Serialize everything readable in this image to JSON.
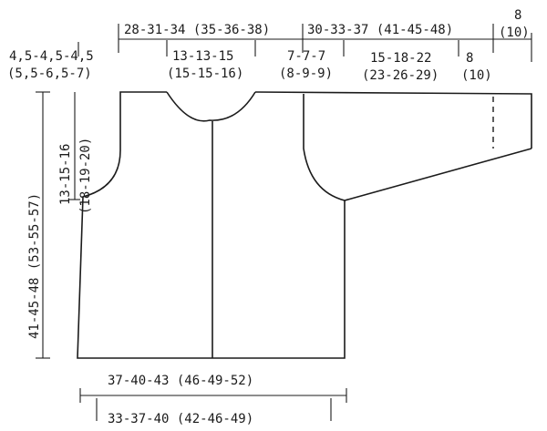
{
  "top_measurements": {
    "total_body_width": "28-31-34 (35-36-38)",
    "sleeve_length": "30-33-37 (41-45-48)",
    "cuff_width_a": "8",
    "cuff_width_b": "(10)"
  },
  "second_row": {
    "shoulder_slope_a": "4,5-4,5-4,5",
    "shoulder_slope_b": "(5,5-6,5-7)",
    "neck_width_a": "13-13-15",
    "neck_width_b": "(15-15-16)",
    "shoulder_a": "7-7-7",
    "shoulder_b": "(8-9-9)",
    "sleeve_upper_a": "15-18-22",
    "sleeve_upper_b": "(23-26-29)",
    "sleeve_cuff_a": "8",
    "sleeve_cuff_b": "(10)"
  },
  "vertical_measurements": {
    "total_length": "41-45-48 (53-55-57)",
    "armhole_depth_a": "13-15-16",
    "armhole_depth_b": "(18-19-20)"
  },
  "bottom_measurements": {
    "chest_width": "37-40-43 (46-49-52)",
    "hem_width": "33-37-40 (42-46-49)"
  }
}
